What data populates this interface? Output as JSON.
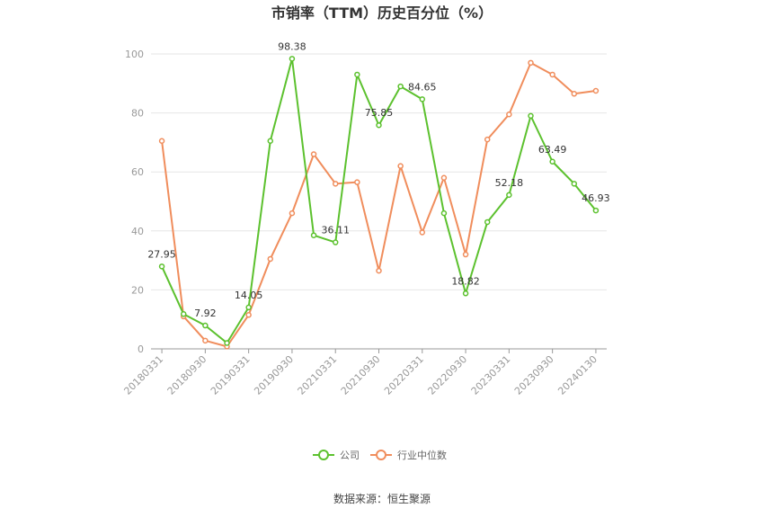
{
  "chart_data": {
    "type": "line",
    "title": "市销率（TTM）历史百分位（%）",
    "ylim": [
      0,
      100
    ],
    "yticks": [
      0,
      20,
      40,
      60,
      80,
      100
    ],
    "xtick_labels": [
      "20180331",
      "20180930",
      "20190331",
      "20190930",
      "20210331",
      "20210930",
      "20220331",
      "20220930",
      "20230331",
      "20230930",
      "20240130"
    ],
    "x_count": 21,
    "xtick_indices": [
      0,
      2,
      4,
      6,
      8,
      10,
      12,
      14,
      16,
      18,
      20
    ],
    "series": [
      {
        "name": "公司",
        "color": "#5cc12e",
        "values": [
          27.95,
          11.8,
          7.92,
          2.0,
          14.05,
          70.5,
          98.38,
          38.5,
          36.11,
          93.0,
          75.85,
          89.0,
          84.65,
          46.0,
          18.82,
          43.0,
          52.18,
          79.0,
          63.49,
          56.0,
          46.93
        ]
      },
      {
        "name": "行业中位数",
        "color": "#f08d5c",
        "values": [
          70.5,
          11.0,
          2.8,
          0.8,
          11.5,
          30.5,
          46.0,
          66.0,
          56.0,
          56.5,
          26.5,
          62.0,
          39.5,
          58.0,
          32.0,
          71.0,
          79.5,
          97.0,
          93.0,
          86.5,
          87.5
        ]
      }
    ],
    "data_labels": [
      {
        "series": 0,
        "index": 0,
        "text": "27.95"
      },
      {
        "series": 0,
        "index": 2,
        "text": "7.92"
      },
      {
        "series": 0,
        "index": 4,
        "text": "14.05"
      },
      {
        "series": 0,
        "index": 6,
        "text": "98.38"
      },
      {
        "series": 0,
        "index": 8,
        "text": "36.11"
      },
      {
        "series": 0,
        "index": 10,
        "text": "75.85"
      },
      {
        "series": 0,
        "index": 12,
        "text": "84.65"
      },
      {
        "series": 0,
        "index": 14,
        "text": "18.82"
      },
      {
        "series": 0,
        "index": 16,
        "text": "52.18"
      },
      {
        "series": 0,
        "index": 18,
        "text": "63.49"
      },
      {
        "series": 0,
        "index": 20,
        "text": "46.93"
      }
    ],
    "grid": true,
    "legend_position": "bottom"
  },
  "source": "数据来源：恒生聚源"
}
